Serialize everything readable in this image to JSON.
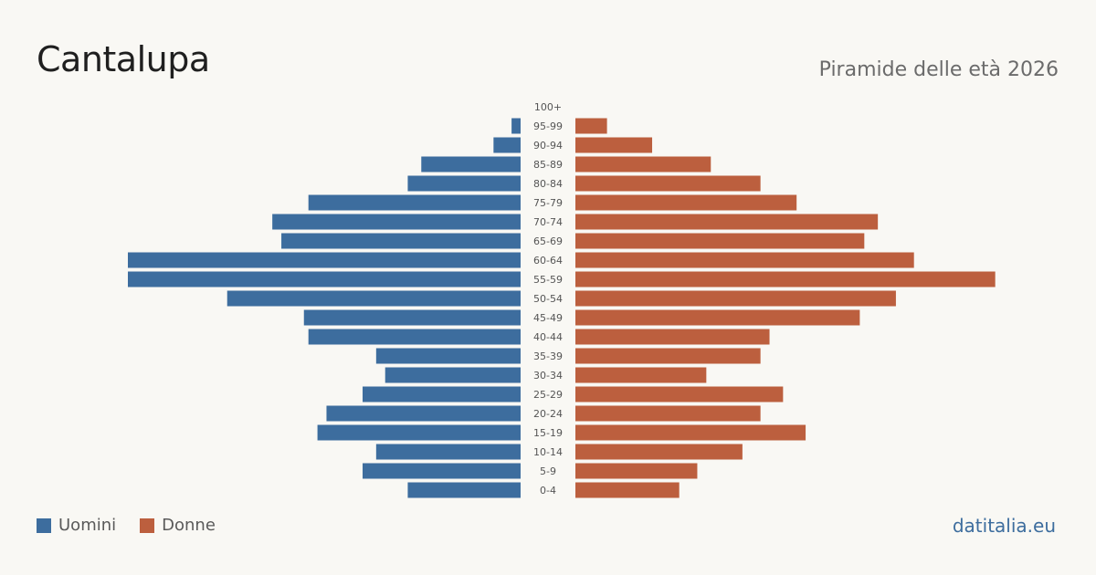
{
  "header": {
    "title": "Cantalupa",
    "subtitle": "Piramide delle età 2026"
  },
  "legend": {
    "men_label": "Uomini",
    "women_label": "Donne"
  },
  "footer": {
    "source": "datitalia.eu"
  },
  "colors": {
    "men": "#3d6d9e",
    "women": "#bc5f3e",
    "background": "#f9f8f4"
  },
  "chart_data": {
    "type": "bar",
    "orientation": "horizontal-population-pyramid",
    "title": "Cantalupa",
    "subtitle": "Piramide delle età 2026",
    "categories": [
      "100+",
      "95-99",
      "90-94",
      "85-89",
      "80-84",
      "75-79",
      "70-74",
      "65-69",
      "60-64",
      "55-59",
      "50-54",
      "45-49",
      "40-44",
      "35-39",
      "30-34",
      "25-29",
      "20-24",
      "15-19",
      "10-14",
      "5-9",
      "0-4"
    ],
    "series": [
      {
        "name": "Uomini",
        "side": "left",
        "values": [
          0,
          2,
          6,
          22,
          25,
          47,
          55,
          53,
          87,
          87,
          65,
          48,
          47,
          32,
          30,
          35,
          43,
          45,
          32,
          35,
          25
        ]
      },
      {
        "name": "Donne",
        "side": "right",
        "values": [
          0,
          7,
          17,
          30,
          41,
          49,
          67,
          64,
          75,
          93,
          71,
          63,
          43,
          41,
          29,
          46,
          41,
          51,
          37,
          27,
          23
        ]
      }
    ],
    "grid": false,
    "legend_position": "bottom-left"
  }
}
